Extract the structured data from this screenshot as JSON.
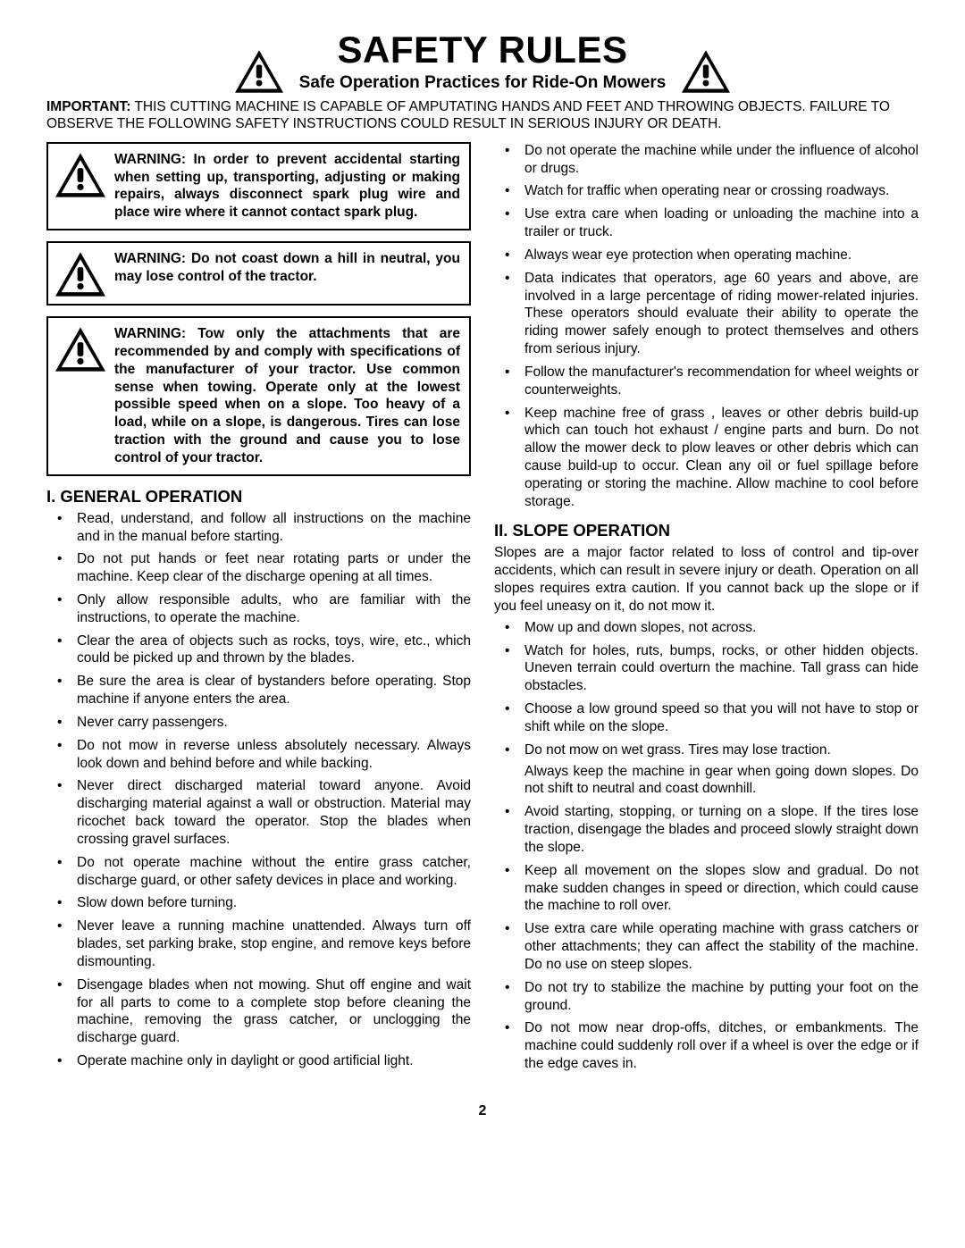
{
  "header": {
    "title": "SAFETY RULES",
    "subtitle": "Safe Operation Practices for Ride-On Mowers"
  },
  "important": {
    "label": "IMPORTANT:",
    "text": "THIS CUTTING MACHINE IS CAPABLE OF AMPUTATING HANDS AND FEET AND THROWING OBJECTS.  FAILURE TO OBSERVE THE FOLLOWING SAFETY INSTRUCTIONS COULD RESULT IN SERIOUS INJURY OR DEATH."
  },
  "warnings": [
    "WARNING:  In order to prevent acci­dental starting when setting up, trans­porting, adjusting or making repairs, always disconnect spark plug wire and place wire where it cannot contact spark plug.",
    "WARNING:  Do not coast down a hill in neutral, you may lose control of the tractor.",
    "WARNING:  Tow only the attachments that are recommended by and comply with specifications of the manufacturer of your tractor. Use common sense when towing. Operate only at the low­est possible speed when on a slope. Too heavy of a load, while on a slope, is dangerous.  Tires can lose traction with the ground and cause you to lose control of your tractor."
  ],
  "section1": {
    "title": "I. GENERAL OPERATION",
    "items": [
      "Read, understand, and follow all instructions on the machine and in the manual before starting.",
      "Do not put hands or feet near rotating parts or under the machine. Keep clear of the discharge opening at all times.",
      "Only allow responsible adults, who are familiar with the instructions, to operate the machine.",
      "Clear the area of objects such as rocks, toys, wire, etc., which could be picked up and thrown by the blades.",
      "Be sure the area is clear of bystanders before operat­ing.  Stop machine if anyone enters the area.",
      "Never carry passengers.",
      "Do not mow in reverse unless absolutely necessary. Always look down and behind before and while back­ing.",
      "Never direct discharged material toward anyone. Avoid discharging material against a wall or obstruction. Ma­terial may ricochet back toward the operator. Stop the blades when crossing gravel surfaces.",
      "Do not operate machine without the entire grass catcher, discharge guard, or other safety devices in place and working.",
      "Slow down before turning.",
      "Never leave a running machine unattended.  Always turn off blades, set parking brake, stop engine, and remove keys before dismounting.",
      "Disengage blades when not mowing. Shut off engine and wait for all parts to come to a complete stop before cleaning the machine, removing the grass catcher, or unclogging the discharge guard.",
      "Operate machine only in daylight or good artificial light."
    ]
  },
  "col2_top": [
    "Do not operate the machine while under the influence of alcohol or drugs.",
    "Watch for traffic when operating near or crossing road­ways.",
    "Use extra care when loading or unloading the machine into a trailer or truck.",
    "Always wear eye protection when operating ma­chine.",
    "Data indicates that operators, age 60 years and above, are involved in a large percentage of riding mower-re­lated injuries.  These operators should evaluate their ability to operate the riding mower safely enough to protect themselves and others from serious injury.",
    "Follow the manufacturer's recommendation for wheel weights or counterweights.",
    "Keep machine free of grass , leaves or other debris build-up which can touch hot exhaust / engine parts and burn. Do not allow the mower deck to plow leaves or other debris which can cause build-up to occur. Clean any oil or fuel spillage before operating or storing the machine. Allow machine to cool before storage."
  ],
  "section2": {
    "title": "II. SLOPE OPERATION",
    "intro": "Slopes are a major factor related to loss of control and tip-over accidents, which can result in severe injury or death.  Operation on all slopes requires extra caution.  If you cannot back up the slope or if you feel uneasy on it, do not mow it.",
    "items": [
      "Mow up and down slopes, not across.",
      "Watch for holes, ruts, bumps, rocks, or other hidden objects.  Uneven terrain could overturn the machine. Tall grass can hide obstacles.",
      "Choose a low ground speed so that you will not have to stop or shift while on the slope.",
      "Do not mow on wet grass. Tires may lose traction."
    ],
    "sub_after_3": "Always keep the machine in gear when going down slopes. Do not shift to neutral and coast downhill.",
    "items2": [
      "Avoid starting, stopping, or turning on a slope.  If the tires lose traction,  disengage the blades and proceed slowly straight down the slope.",
      "Keep all movement on the slopes slow and gradual. Do not make sudden changes in speed or direction, which could cause the machine to roll over.",
      "Use extra care while operating machine with grass catchers or other attachments; they can affect the stability of the machine. Do no use on steep slopes.",
      "Do not  try to stabilize the machine by putting your foot on the ground.",
      "Do not mow near drop-offs, ditches, or embankments. The machine could suddenly roll over if a wheel is over the edge or if the edge caves in."
    ]
  },
  "page_number": "2",
  "icon_sizes": {
    "header": 54,
    "warn": 56
  },
  "colors": {
    "text": "#000000",
    "bg": "#ffffff",
    "border": "#000000"
  }
}
